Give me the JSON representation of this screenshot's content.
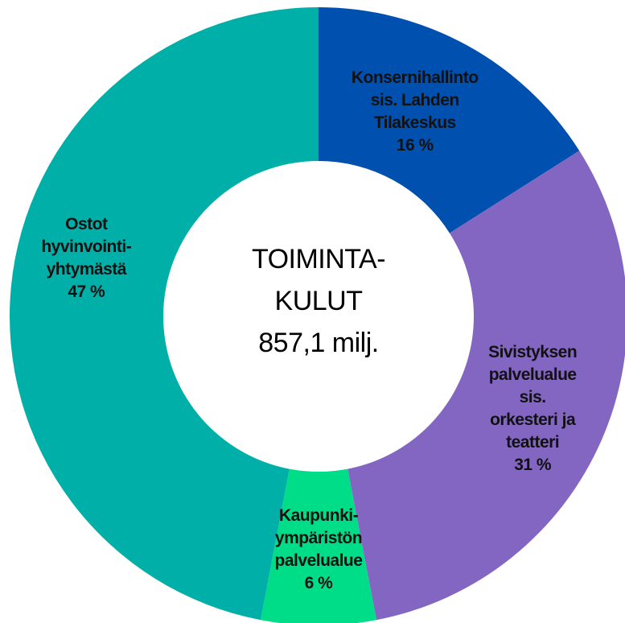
{
  "chart_data": {
    "type": "donut",
    "categories": [
      "Konsernihallinto\nsis. Lahden\nTilakeskus",
      "Sivistyksen\npalvelualue\nsis.\norkesteri ja\nteatteri",
      "Kaupunki-\nympäristön\npalvelualue",
      "Ostot\nhyvinvointi-\nyhtymästä"
    ],
    "values": [
      16,
      31,
      6,
      47
    ],
    "value_labels": [
      "16 %",
      "31 %",
      "6 %",
      "47 %"
    ],
    "colors": [
      "#0050b0",
      "#8366c2",
      "#00dd88",
      "#00b0a8"
    ],
    "center_text": [
      "TOIMINTA-",
      "KULUT",
      "857,1 milj."
    ]
  }
}
